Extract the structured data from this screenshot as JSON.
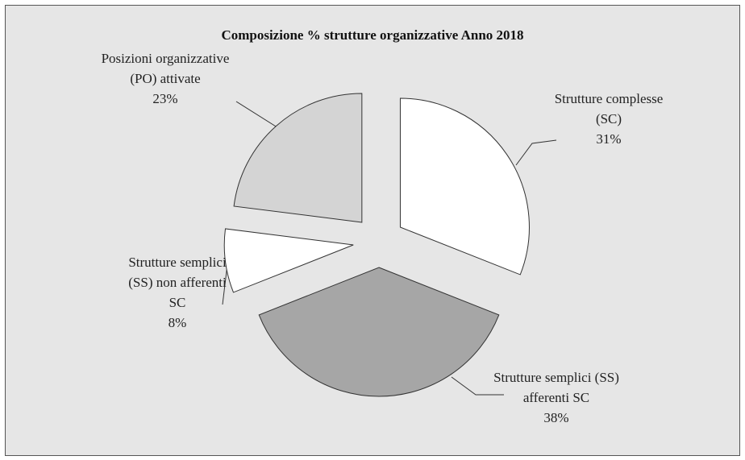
{
  "chart_data": {
    "type": "pie",
    "title": "Composizione % strutture organizzative  Anno 2018",
    "categories": [
      "Strutture complesse (SC)",
      "Strutture semplici (SS) afferenti SC",
      "Strutture semplici (SS) non afferenti SC",
      "Posizioni organizzative (PO) attivate"
    ],
    "values": [
      31,
      38,
      8,
      23
    ],
    "value_labels": [
      "31%",
      "38%",
      "8%",
      "23%"
    ],
    "colors": [
      "#ffffff",
      "#a6a6a6",
      "#ffffff",
      "#d4d4d4"
    ]
  }
}
